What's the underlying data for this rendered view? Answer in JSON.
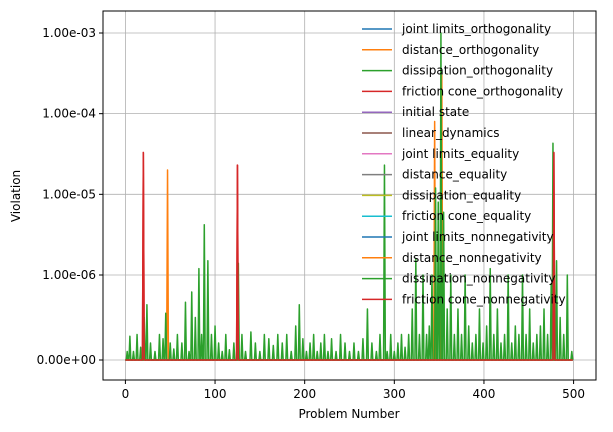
{
  "chart_data": {
    "type": "line",
    "xlabel": "Problem Number",
    "ylabel": "Violation",
    "xlim": [
      -25,
      525
    ],
    "y_scale": "symlog",
    "y_ticks": [
      {
        "value": 0,
        "label": "0.00e+00"
      },
      {
        "value": 1e-06,
        "label": "1.00e-06"
      },
      {
        "value": 1e-05,
        "label": "1.00e-05"
      },
      {
        "value": 0.0001,
        "label": "1.00e-04"
      },
      {
        "value": 0.001,
        "label": "1.00e-03"
      }
    ],
    "x_ticks": [
      0,
      100,
      200,
      300,
      400,
      500
    ],
    "grid": true,
    "legend_position": "top-right",
    "series": [
      {
        "name": "joint limits_orthogonality",
        "color": "#1f77b4",
        "spikes": []
      },
      {
        "name": "distance_orthogonality",
        "color": "#ff7f0e",
        "spikes": [
          [
            47,
            2e-05
          ],
          [
            345,
            8e-05
          ],
          [
            353,
            0.0003
          ]
        ]
      },
      {
        "name": "dissipation_orthogonality",
        "color": "#2ca02c",
        "spikes": []
      },
      {
        "name": "friction cone_orthogonality",
        "color": "#d62728",
        "spikes": [
          [
            20,
            3.3e-05
          ],
          [
            125,
            2.3e-05
          ],
          [
            478,
            3.3e-05
          ]
        ]
      },
      {
        "name": "initial state",
        "color": "#9467bd",
        "spikes": []
      },
      {
        "name": "linear_dynamics",
        "color": "#8c564b",
        "spikes": []
      },
      {
        "name": "joint limits_equality",
        "color": "#e377c2",
        "spikes": []
      },
      {
        "name": "distance_equality",
        "color": "#7f7f7f",
        "spikes": []
      },
      {
        "name": "dissipation_equality",
        "color": "#bcbd22",
        "spikes": []
      },
      {
        "name": "friction cone_equality",
        "color": "#17becf",
        "spikes": []
      },
      {
        "name": "joint limits_nonnegativity",
        "color": "#1f77b4",
        "spikes": []
      },
      {
        "name": "distance_nonnegativity",
        "color": "#ff7f0e",
        "spikes": []
      },
      {
        "name": "dissipation_nonnegativity",
        "color": "#2ca02c",
        "spikes": [
          [
            2,
            1e-07
          ],
          [
            5,
            2.8e-07
          ],
          [
            9,
            1e-07
          ],
          [
            13,
            3e-07
          ],
          [
            17,
            1.5e-07
          ],
          [
            21,
            5e-07
          ],
          [
            24,
            6.5e-07
          ],
          [
            28,
            2e-07
          ],
          [
            33,
            1e-07
          ],
          [
            38,
            3e-07
          ],
          [
            42,
            2.5e-07
          ],
          [
            45,
            5.5e-07
          ],
          [
            50,
            2e-07
          ],
          [
            54,
            1.3e-07
          ],
          [
            58,
            3e-07
          ],
          [
            63,
            2e-07
          ],
          [
            67,
            6.8e-07
          ],
          [
            71,
            1e-07
          ],
          [
            74,
            8e-07
          ],
          [
            78,
            5e-07
          ],
          [
            82,
            1.2e-06
          ],
          [
            85,
            3e-07
          ],
          [
            88,
            4.2e-06
          ],
          [
            92,
            1.5e-06
          ],
          [
            96,
            3e-07
          ],
          [
            100,
            4e-07
          ],
          [
            104,
            2e-07
          ],
          [
            108,
            1e-07
          ],
          [
            112,
            3e-07
          ],
          [
            116,
            1.2e-07
          ],
          [
            121,
            2e-07
          ],
          [
            126,
            1.4e-06
          ],
          [
            130,
            3e-07
          ],
          [
            134,
            1e-07
          ],
          [
            140,
            3.3e-07
          ],
          [
            145,
            2e-07
          ],
          [
            150,
            1e-07
          ],
          [
            155,
            3e-07
          ],
          [
            160,
            2.5e-07
          ],
          [
            165,
            1.7e-07
          ],
          [
            170,
            3e-07
          ],
          [
            175,
            2e-07
          ],
          [
            180,
            3e-07
          ],
          [
            185,
            1e-07
          ],
          [
            190,
            4e-07
          ],
          [
            194,
            6.5e-07
          ],
          [
            198,
            2.5e-07
          ],
          [
            202,
            1e-07
          ],
          [
            206,
            2e-07
          ],
          [
            210,
            3e-07
          ],
          [
            214,
            1e-07
          ],
          [
            218,
            2e-07
          ],
          [
            222,
            3e-07
          ],
          [
            226,
            1e-07
          ],
          [
            230,
            2.5e-07
          ],
          [
            235,
            1e-07
          ],
          [
            240,
            3e-07
          ],
          [
            245,
            2e-07
          ],
          [
            250,
            1e-07
          ],
          [
            255,
            2e-07
          ],
          [
            260,
            1e-07
          ],
          [
            265,
            2.5e-07
          ],
          [
            270,
            6e-07
          ],
          [
            275,
            2e-07
          ],
          [
            280,
            1e-07
          ],
          [
            284,
            3e-07
          ],
          [
            289,
            2.3e-05
          ],
          [
            292,
            1e-07
          ],
          [
            296,
            3e-07
          ],
          [
            300,
            1e-07
          ],
          [
            304,
            2e-07
          ],
          [
            308,
            3e-07
          ],
          [
            312,
            1.5e-07
          ],
          [
            316,
            3e-07
          ],
          [
            320,
            6e-07
          ],
          [
            324,
            1.6e-06
          ],
          [
            328,
            3e-07
          ],
          [
            332,
            1e-06
          ],
          [
            336,
            3e-07
          ],
          [
            339,
            4e-07
          ],
          [
            342,
            1e-06
          ],
          [
            346,
            1.2e-05
          ],
          [
            349,
            8e-06
          ],
          [
            352,
            0.001
          ],
          [
            355,
            6e-06
          ],
          [
            359,
            6e-07
          ],
          [
            363,
            1e-06
          ],
          [
            367,
            3e-07
          ],
          [
            371,
            6e-07
          ],
          [
            375,
            3e-07
          ],
          [
            379,
            1e-06
          ],
          [
            383,
            4e-07
          ],
          [
            387,
            2e-07
          ],
          [
            391,
            3e-07
          ],
          [
            395,
            6e-07
          ],
          [
            399,
            2e-07
          ],
          [
            403,
            4e-07
          ],
          [
            407,
            1.2e-06
          ],
          [
            411,
            3e-07
          ],
          [
            415,
            6e-07
          ],
          [
            419,
            2e-07
          ],
          [
            423,
            3e-07
          ],
          [
            427,
            1e-06
          ],
          [
            431,
            2e-07
          ],
          [
            435,
            4e-07
          ],
          [
            439,
            3e-07
          ],
          [
            443,
            1e-06
          ],
          [
            447,
            3e-07
          ],
          [
            451,
            6e-07
          ],
          [
            455,
            2e-07
          ],
          [
            459,
            3e-07
          ],
          [
            463,
            4e-07
          ],
          [
            467,
            6e-07
          ],
          [
            471,
            3e-07
          ],
          [
            475,
            9e-07
          ],
          [
            477,
            4.3e-05
          ],
          [
            481,
            1.5e-06
          ],
          [
            485,
            5e-07
          ],
          [
            489,
            3e-07
          ],
          [
            493,
            1e-06
          ],
          [
            498,
            1e-07
          ]
        ]
      },
      {
        "name": "friction cone_nonnegativity",
        "color": "#d62728",
        "spikes": [
          [
            20,
            3.3e-05
          ],
          [
            125,
            2.3e-05
          ],
          [
            478,
            3.3e-05
          ]
        ]
      }
    ]
  }
}
